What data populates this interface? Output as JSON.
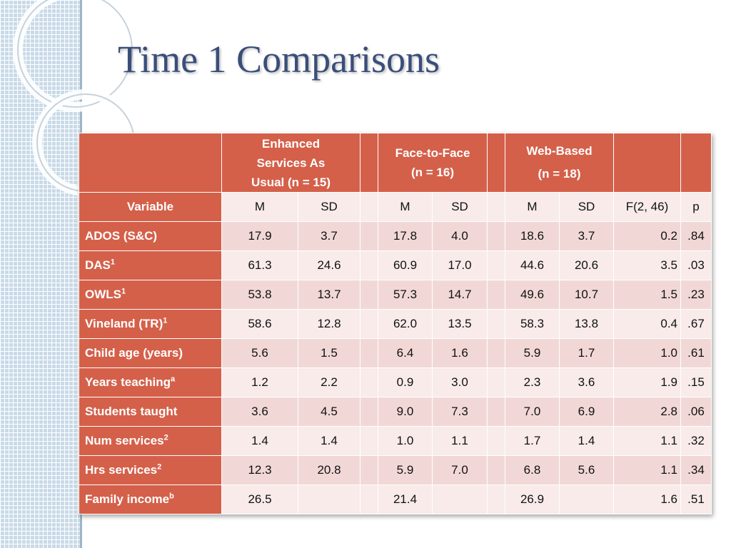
{
  "slide": {
    "title": "Time 1 Comparisons"
  },
  "table": {
    "group_headers": {
      "esau_line1": "Enhanced",
      "esau_line2": "Services As",
      "esau_line3": "Usual (n = 15)",
      "ftf_line1": "Face-to-Face",
      "ftf_line2": "(n = 16)",
      "web_line1": "Web-Based",
      "web_line2": "(n = 18)"
    },
    "subheaders": [
      "Variable",
      "M",
      "SD",
      "M",
      "SD",
      "M",
      "SD",
      "F(2, 46)",
      "p"
    ],
    "rows": [
      {
        "label": "ADOS (S&C)",
        "sup": "",
        "v": [
          "17.9",
          "3.7",
          "17.8",
          "4.0",
          "18.6",
          "3.7",
          "0.2",
          ".84"
        ]
      },
      {
        "label": "DAS",
        "sup": "1",
        "v": [
          "61.3",
          "24.6",
          "60.9",
          "17.0",
          "44.6",
          "20.6",
          "3.5",
          ".03"
        ]
      },
      {
        "label": "OWLS",
        "sup": "1",
        "v": [
          "53.8",
          "13.7",
          "57.3",
          "14.7",
          "49.6",
          "10.7",
          "1.5",
          ".23"
        ]
      },
      {
        "label": "Vineland (TR)",
        "sup": "1",
        "v": [
          "58.6",
          "12.8",
          "62.0",
          "13.5",
          "58.3",
          "13.8",
          "0.4",
          ".67"
        ]
      },
      {
        "label": "Child age (years)",
        "sup": "",
        "v": [
          "5.6",
          "1.5",
          "6.4",
          "1.6",
          "5.9",
          "1.7",
          "1.0",
          ".61"
        ]
      },
      {
        "label": "Years teaching",
        "sup": "a",
        "v": [
          "1.2",
          "2.2",
          "0.9",
          "3.0",
          "2.3",
          "3.6",
          "1.9",
          ".15"
        ]
      },
      {
        "label": "Students taught",
        "sup": "",
        "v": [
          "3.6",
          "4.5",
          "9.0",
          "7.3",
          "7.0",
          "6.9",
          "2.8",
          ".06"
        ]
      },
      {
        "label": "Num services",
        "sup": "2",
        "v": [
          "1.4",
          "1.4",
          "1.0",
          "1.1",
          "1.7",
          "1.4",
          "1.1",
          ".32"
        ]
      },
      {
        "label": "Hrs services",
        "sup": "2",
        "v": [
          "12.3",
          "20.8",
          "5.9",
          "7.0",
          "6.8",
          "5.6",
          "1.1",
          ".34"
        ]
      },
      {
        "label": "Family income",
        "sup": "b",
        "v": [
          "26.5",
          "",
          "21.4",
          "",
          "26.9",
          "",
          "1.6",
          ".51"
        ]
      }
    ]
  }
}
